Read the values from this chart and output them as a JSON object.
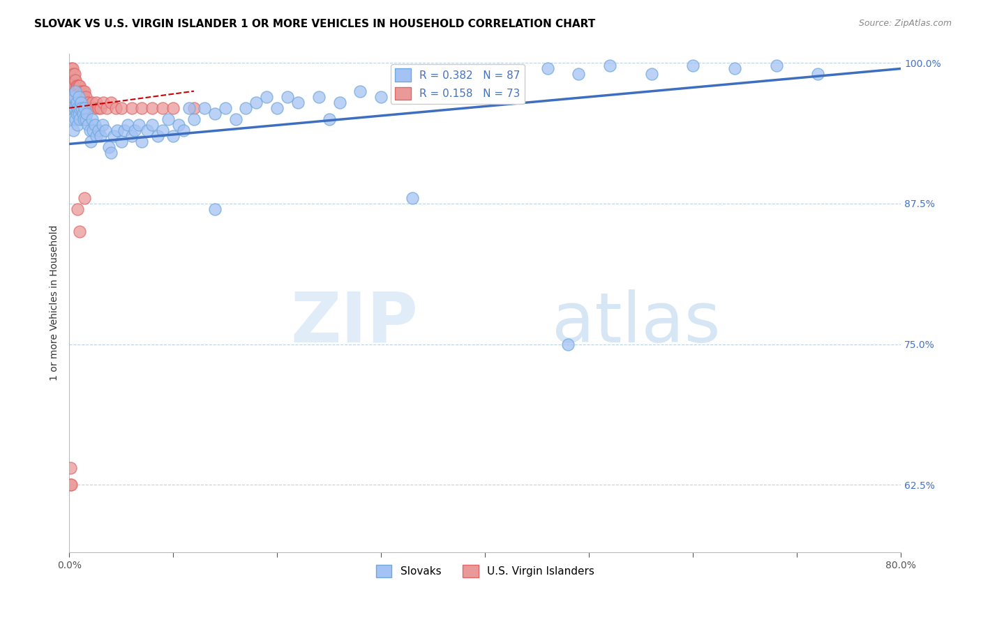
{
  "title": "SLOVAK VS U.S. VIRGIN ISLANDER 1 OR MORE VEHICLES IN HOUSEHOLD CORRELATION CHART",
  "source": "Source: ZipAtlas.com",
  "ylabel": "1 or more Vehicles in Household",
  "xlim": [
    0.0,
    0.8
  ],
  "ylim": [
    0.565,
    1.008
  ],
  "xticks": [
    0.0,
    0.1,
    0.2,
    0.3,
    0.4,
    0.5,
    0.6,
    0.7,
    0.8
  ],
  "xticklabels": [
    "0.0%",
    "",
    "",
    "",
    "",
    "",
    "",
    "",
    "80.0%"
  ],
  "yticks": [
    0.625,
    0.75,
    0.875,
    1.0
  ],
  "yticklabels": [
    "62.5%",
    "75.0%",
    "87.5%",
    "100.0%"
  ],
  "blue_color": "#a4c2f4",
  "pink_color": "#ea9999",
  "blue_edge": "#6fa8dc",
  "pink_edge": "#e06666",
  "trend_blue_color": "#3d6ebf",
  "trend_pink_color": "#cc0000",
  "blue_scatter_x": [
    0.002,
    0.003,
    0.003,
    0.004,
    0.005,
    0.005,
    0.006,
    0.006,
    0.007,
    0.007,
    0.008,
    0.008,
    0.009,
    0.009,
    0.01,
    0.01,
    0.011,
    0.012,
    0.013,
    0.014,
    0.015,
    0.016,
    0.017,
    0.018,
    0.02,
    0.021,
    0.022,
    0.023,
    0.025,
    0.026,
    0.028,
    0.03,
    0.032,
    0.035,
    0.038,
    0.04,
    0.043,
    0.046,
    0.05,
    0.053,
    0.056,
    0.06,
    0.063,
    0.067,
    0.07,
    0.075,
    0.08,
    0.085,
    0.09,
    0.095,
    0.1,
    0.105,
    0.11,
    0.115,
    0.12,
    0.13,
    0.14,
    0.15,
    0.16,
    0.17,
    0.18,
    0.19,
    0.2,
    0.21,
    0.22,
    0.24,
    0.26,
    0.28,
    0.3,
    0.32,
    0.34,
    0.36,
    0.38,
    0.4,
    0.43,
    0.46,
    0.49,
    0.52,
    0.56,
    0.6,
    0.64,
    0.68,
    0.72,
    0.14,
    0.25,
    0.33,
    0.48
  ],
  "blue_scatter_y": [
    0.96,
    0.95,
    0.97,
    0.94,
    0.96,
    0.97,
    0.95,
    0.975,
    0.955,
    0.965,
    0.96,
    0.945,
    0.955,
    0.97,
    0.96,
    0.95,
    0.965,
    0.96,
    0.955,
    0.95,
    0.96,
    0.95,
    0.955,
    0.945,
    0.94,
    0.93,
    0.95,
    0.94,
    0.945,
    0.935,
    0.94,
    0.935,
    0.945,
    0.94,
    0.925,
    0.92,
    0.935,
    0.94,
    0.93,
    0.94,
    0.945,
    0.935,
    0.94,
    0.945,
    0.93,
    0.94,
    0.945,
    0.935,
    0.94,
    0.95,
    0.935,
    0.945,
    0.94,
    0.96,
    0.95,
    0.96,
    0.955,
    0.96,
    0.95,
    0.96,
    0.965,
    0.97,
    0.96,
    0.97,
    0.965,
    0.97,
    0.965,
    0.975,
    0.97,
    0.975,
    0.98,
    0.975,
    0.98,
    0.985,
    0.99,
    0.995,
    0.99,
    0.998,
    0.99,
    0.998,
    0.995,
    0.998,
    0.99,
    0.87,
    0.95,
    0.88,
    0.75
  ],
  "pink_scatter_x": [
    0.001,
    0.001,
    0.001,
    0.002,
    0.002,
    0.002,
    0.002,
    0.003,
    0.003,
    0.003,
    0.003,
    0.003,
    0.004,
    0.004,
    0.004,
    0.004,
    0.005,
    0.005,
    0.005,
    0.005,
    0.006,
    0.006,
    0.006,
    0.007,
    0.007,
    0.007,
    0.008,
    0.008,
    0.008,
    0.009,
    0.009,
    0.009,
    0.01,
    0.01,
    0.01,
    0.011,
    0.011,
    0.012,
    0.012,
    0.013,
    0.013,
    0.014,
    0.014,
    0.015,
    0.015,
    0.016,
    0.016,
    0.017,
    0.018,
    0.019,
    0.02,
    0.022,
    0.024,
    0.026,
    0.028,
    0.03,
    0.033,
    0.036,
    0.04,
    0.045,
    0.05,
    0.06,
    0.07,
    0.08,
    0.09,
    0.1,
    0.12,
    0.001,
    0.001,
    0.002,
    0.008,
    0.01,
    0.015
  ],
  "pink_scatter_y": [
    0.98,
    0.99,
    0.97,
    0.975,
    0.985,
    0.965,
    0.995,
    0.975,
    0.985,
    0.965,
    0.995,
    0.97,
    0.98,
    0.96,
    0.99,
    0.97,
    0.975,
    0.985,
    0.96,
    0.99,
    0.975,
    0.96,
    0.985,
    0.97,
    0.98,
    0.96,
    0.97,
    0.98,
    0.965,
    0.97,
    0.98,
    0.965,
    0.97,
    0.98,
    0.96,
    0.97,
    0.975,
    0.965,
    0.97,
    0.96,
    0.975,
    0.965,
    0.97,
    0.96,
    0.975,
    0.965,
    0.97,
    0.96,
    0.965,
    0.96,
    0.96,
    0.965,
    0.96,
    0.965,
    0.96,
    0.96,
    0.965,
    0.96,
    0.965,
    0.96,
    0.96,
    0.96,
    0.96,
    0.96,
    0.96,
    0.96,
    0.96,
    0.625,
    0.64,
    0.625,
    0.87,
    0.85,
    0.88
  ],
  "blue_trend_x": [
    0.0,
    0.8
  ],
  "blue_trend_y": [
    0.928,
    0.995
  ],
  "pink_trend_x": [
    0.0,
    0.12
  ],
  "pink_trend_y": [
    0.96,
    0.975
  ]
}
